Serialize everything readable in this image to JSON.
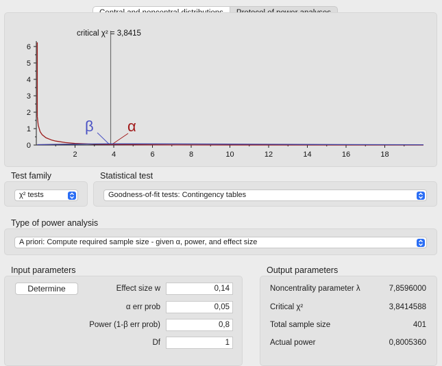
{
  "tabs": [
    {
      "label": "Central and noncentral distributions",
      "active": true
    },
    {
      "label": "Protocol of power analyses",
      "active": false
    }
  ],
  "plot": {
    "critical_label": "critical χ² = 3,8415",
    "beta_symbol": "β",
    "alpha_symbol": "α",
    "x_ticks": [
      "2",
      "4",
      "6",
      "8",
      "10",
      "12",
      "14",
      "16",
      "18"
    ],
    "y_ticks": [
      "0",
      "1",
      "2",
      "3",
      "4",
      "5",
      "6"
    ],
    "colors": {
      "central": "#9b1c1c",
      "noncentral": "#3d3d9e",
      "beta": "#4a52c4",
      "alpha": "#a11a1a",
      "critical_line": "#6e6e6e"
    }
  },
  "chart_data": {
    "type": "line",
    "title": "",
    "xlabel": "",
    "ylabel": "",
    "xlim": [
      0,
      20
    ],
    "ylim": [
      0,
      6.3
    ],
    "critical_value": 3.8415,
    "series": [
      {
        "x": [
          0.05,
          0.1,
          0.2,
          0.3,
          0.5,
          0.8,
          1,
          1.5,
          2,
          3,
          3.84,
          5,
          7,
          10,
          14,
          20
        ],
        "y": [
          1.74,
          1.2,
          0.81,
          0.63,
          0.44,
          0.3,
          0.24,
          0.15,
          0.1,
          0.05,
          0.03,
          0.015,
          0.005,
          0.001,
          0.0002,
          0
        ]
      },
      {
        "x": [
          0.05,
          0.5,
          1,
          2,
          3,
          3.84,
          5,
          7,
          10,
          14,
          20
        ],
        "y": [
          0.02,
          0.03,
          0.04,
          0.055,
          0.065,
          0.07,
          0.072,
          0.068,
          0.055,
          0.035,
          0.015
        ]
      }
    ]
  },
  "test_family": {
    "label": "Test family",
    "value": "χ² tests"
  },
  "statistical_test": {
    "label": "Statistical test",
    "value": "Goodness-of-fit tests: Contingency tables"
  },
  "power_type": {
    "label": "Type of power analysis",
    "value": "A priori: Compute required sample size - given α, power, and effect size"
  },
  "input": {
    "title": "Input parameters",
    "determine": "Determine",
    "params": [
      {
        "label": "Effect size w",
        "value": "0,14"
      },
      {
        "label": "α err prob",
        "value": "0,05"
      },
      {
        "label": "Power (1-β err prob)",
        "value": "0,8"
      },
      {
        "label": "Df",
        "value": "1"
      }
    ]
  },
  "output": {
    "title": "Output parameters",
    "params": [
      {
        "label": "Noncentrality parameter λ",
        "value": "7,8596000"
      },
      {
        "label": "Critical χ²",
        "value": "3,8414588"
      },
      {
        "label": "Total sample size",
        "value": "401"
      },
      {
        "label": "Actual power",
        "value": "0,8005360"
      }
    ]
  }
}
